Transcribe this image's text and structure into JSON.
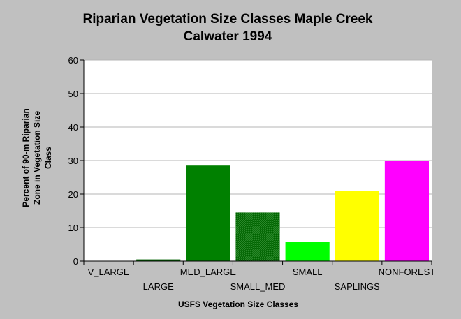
{
  "chart_data": {
    "type": "bar",
    "title_lines": [
      "Riparian Vegetation Size Classes Maple Creek",
      "Calwater 1994"
    ],
    "xlabel": "USFS Vegetation Size Classes",
    "ylabel_lines": [
      "Percent of 90-m Riparian",
      "Zone in Vegetation Size",
      "Class"
    ],
    "ylim": [
      0,
      60
    ],
    "yticks": [
      0,
      10,
      20,
      30,
      40,
      50,
      60
    ],
    "categories": [
      "V_LARGE",
      "LARGE",
      "MED_LARGE",
      "SMALL_MED",
      "SMALL",
      "SAPLINGS",
      "NONFOREST"
    ],
    "values": [
      0,
      0.5,
      28.5,
      14.5,
      5.8,
      21,
      30
    ],
    "colors": [
      "#808080",
      "#006400",
      "#008000",
      "#006400",
      "#00ff00",
      "#ffff00",
      "#ff00ff"
    ],
    "hatched": [
      false,
      false,
      false,
      true,
      false,
      false,
      false
    ],
    "grid": true,
    "legend": false
  }
}
